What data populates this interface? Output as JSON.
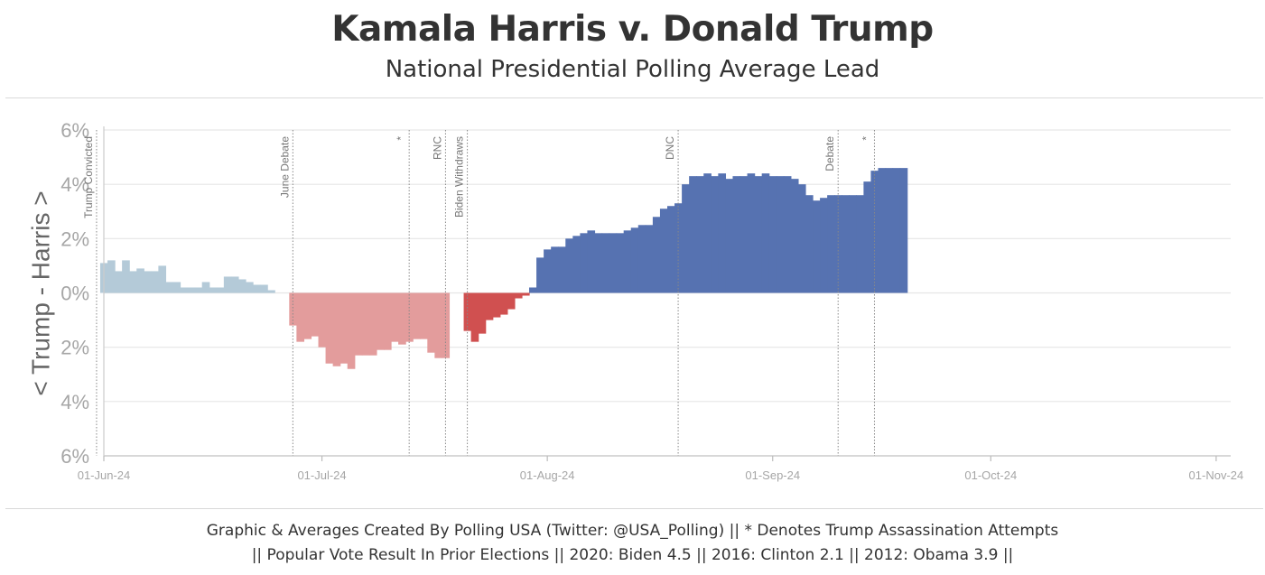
{
  "header": {
    "title": "Kamala Harris v. Donald Trump",
    "subtitle": "National Presidential Polling Average Lead"
  },
  "footer": {
    "line1": "Graphic & Averages Created By Polling USA (Twitter: @USA_Polling) || * Denotes Trump Assassination Attempts",
    "line2": "|| Popular Vote Result In Prior Elections || 2020: Biden 4.5 || 2016: Clinton 2.1 || 2012: Obama 3.9 ||"
  },
  "colors": {
    "biden_lead": "#b4cad8",
    "trump_lead_biden_period": "#e39c9c",
    "trump_lead_harris_period": "#d05050",
    "harris_lead": "#5672b1",
    "grid": "#e6e6e6",
    "event_line": "#888888"
  },
  "chart_data": {
    "type": "bar",
    "x_axis": {
      "type": "date",
      "range": [
        "2024-06-01",
        "2024-11-03"
      ],
      "tick_labels": [
        "01-Jun-24",
        "01-Jul-24",
        "01-Aug-24",
        "01-Sep-24",
        "01-Oct-24",
        "01-Nov-24"
      ],
      "tick_dates": [
        "2024-06-01",
        "2024-07-01",
        "2024-08-01",
        "2024-09-01",
        "2024-10-01",
        "2024-11-01"
      ]
    },
    "y_axis": {
      "label": "< Trump - Harris >",
      "range": [
        -6,
        6
      ],
      "ticks": [
        6,
        4,
        2,
        0,
        -2,
        -4,
        -6
      ],
      "tick_labels": [
        "6%",
        "4%",
        "2%",
        "0%",
        "2%",
        "4%",
        "6%"
      ]
    },
    "grid": true,
    "events": [
      {
        "date": "2024-05-31",
        "label": "Trump Convicted"
      },
      {
        "date": "2024-06-27",
        "label": "June Debate"
      },
      {
        "date": "2024-07-13",
        "label": "*"
      },
      {
        "date": "2024-07-18",
        "label": "RNC"
      },
      {
        "date": "2024-07-21",
        "label": "Biden Withdraws"
      },
      {
        "date": "2024-08-19",
        "label": "DNC"
      },
      {
        "date": "2024-09-10",
        "label": "Debate"
      },
      {
        "date": "2024-09-15",
        "label": "*"
      }
    ],
    "series": [
      {
        "key": "biden_lead",
        "dates": [
          "2024-06-01",
          "2024-06-02",
          "2024-06-03",
          "2024-06-04",
          "2024-06-05",
          "2024-06-06",
          "2024-06-07",
          "2024-06-08",
          "2024-06-09",
          "2024-06-10",
          "2024-06-11",
          "2024-06-12",
          "2024-06-13",
          "2024-06-14",
          "2024-06-15",
          "2024-06-16",
          "2024-06-17",
          "2024-06-18",
          "2024-06-19",
          "2024-06-20",
          "2024-06-21",
          "2024-06-22",
          "2024-06-23",
          "2024-06-24",
          "2024-06-25",
          "2024-06-26"
        ],
        "values": [
          1.1,
          1.2,
          0.8,
          1.2,
          0.8,
          0.9,
          0.8,
          0.8,
          1.0,
          0.4,
          0.4,
          0.2,
          0.2,
          0.2,
          0.4,
          0.2,
          0.2,
          0.6,
          0.6,
          0.5,
          0.4,
          0.3,
          0.3,
          0.1,
          0.0,
          0.0
        ]
      },
      {
        "key": "trump_lead_biden_period",
        "dates": [
          "2024-06-27",
          "2024-06-28",
          "2024-06-29",
          "2024-06-30",
          "2024-07-01",
          "2024-07-02",
          "2024-07-03",
          "2024-07-04",
          "2024-07-05",
          "2024-07-06",
          "2024-07-07",
          "2024-07-08",
          "2024-07-09",
          "2024-07-10",
          "2024-07-11",
          "2024-07-12",
          "2024-07-13",
          "2024-07-14",
          "2024-07-15",
          "2024-07-16",
          "2024-07-17",
          "2024-07-18",
          "2024-07-19",
          "2024-07-20"
        ],
        "values": [
          -1.2,
          -1.8,
          -1.7,
          -1.6,
          -2.0,
          -2.6,
          -2.7,
          -2.6,
          -2.8,
          -2.3,
          -2.3,
          -2.3,
          -2.1,
          -2.1,
          -1.8,
          -1.9,
          -1.8,
          -1.7,
          -1.7,
          -2.2,
          -2.4,
          -2.4,
          0.0,
          0.0
        ]
      },
      {
        "key": "trump_lead_harris_period",
        "dates": [
          "2024-07-21",
          "2024-07-22",
          "2024-07-23",
          "2024-07-24",
          "2024-07-25",
          "2024-07-26",
          "2024-07-27",
          "2024-07-28",
          "2024-07-29"
        ],
        "values": [
          -1.4,
          -1.8,
          -1.5,
          -1.0,
          -0.9,
          -0.8,
          -0.6,
          -0.2,
          -0.1
        ]
      },
      {
        "key": "harris_lead",
        "dates": [
          "2024-07-30",
          "2024-07-31",
          "2024-08-01",
          "2024-08-02",
          "2024-08-03",
          "2024-08-04",
          "2024-08-05",
          "2024-08-06",
          "2024-08-07",
          "2024-08-08",
          "2024-08-09",
          "2024-08-10",
          "2024-08-11",
          "2024-08-12",
          "2024-08-13",
          "2024-08-14",
          "2024-08-15",
          "2024-08-16",
          "2024-08-17",
          "2024-08-18",
          "2024-08-19",
          "2024-08-20",
          "2024-08-21",
          "2024-08-22",
          "2024-08-23",
          "2024-08-24",
          "2024-08-25",
          "2024-08-26",
          "2024-08-27",
          "2024-08-28",
          "2024-08-29",
          "2024-08-30",
          "2024-08-31",
          "2024-09-01",
          "2024-09-02",
          "2024-09-03",
          "2024-09-04",
          "2024-09-05",
          "2024-09-06",
          "2024-09-07",
          "2024-09-08",
          "2024-09-09",
          "2024-09-10",
          "2024-09-11",
          "2024-09-12",
          "2024-09-13",
          "2024-09-14",
          "2024-09-15",
          "2024-09-16",
          "2024-09-17",
          "2024-09-18",
          "2024-09-19"
        ],
        "values": [
          0.2,
          1.3,
          1.6,
          1.7,
          1.7,
          2.0,
          2.1,
          2.2,
          2.3,
          2.2,
          2.2,
          2.2,
          2.2,
          2.3,
          2.4,
          2.5,
          2.5,
          2.8,
          3.1,
          3.2,
          3.3,
          4.0,
          4.3,
          4.3,
          4.4,
          4.3,
          4.4,
          4.2,
          4.3,
          4.3,
          4.4,
          4.3,
          4.4,
          4.3,
          4.3,
          4.3,
          4.2,
          4.0,
          3.6,
          3.4,
          3.5,
          3.6,
          3.6,
          3.6,
          3.6,
          3.6,
          4.1,
          4.5,
          4.6,
          4.6,
          4.6,
          4.6
        ]
      }
    ]
  }
}
